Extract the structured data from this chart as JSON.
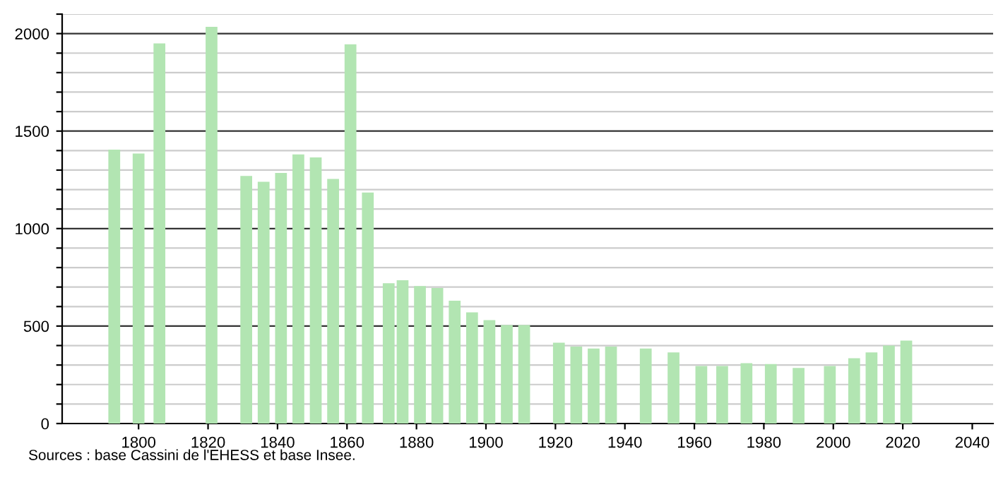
{
  "chart_data": {
    "type": "bar",
    "x": [
      1793,
      1800,
      1806,
      1821,
      1831,
      1836,
      1841,
      1846,
      1851,
      1856,
      1861,
      1866,
      1872,
      1876,
      1881,
      1886,
      1891,
      1896,
      1901,
      1906,
      1911,
      1921,
      1926,
      1931,
      1936,
      1946,
      1954,
      1962,
      1968,
      1975,
      1982,
      1990,
      1999,
      2006,
      2011,
      2016,
      2021
    ],
    "values": [
      1405,
      1385,
      1950,
      2035,
      1270,
      1240,
      1285,
      1380,
      1365,
      1255,
      1945,
      1185,
      720,
      735,
      705,
      695,
      630,
      570,
      530,
      505,
      505,
      415,
      395,
      385,
      395,
      385,
      365,
      295,
      295,
      310,
      305,
      285,
      295,
      335,
      365,
      400,
      425
    ],
    "color": "#b2e5b2",
    "xlim": [
      1778,
      2046
    ],
    "xticks": [
      1800,
      1820,
      1840,
      1860,
      1880,
      1900,
      1920,
      1940,
      1960,
      1980,
      2000,
      2020,
      2040
    ],
    "ylim": [
      0,
      2100
    ],
    "yticks": [
      0,
      {
        "value": 100,
        "label": null
      },
      {
        "value": 200,
        "label": null
      },
      {
        "value": 300,
        "label": null
      },
      {
        "value": 400,
        "label": null
      },
      500,
      {
        "value": 600,
        "label": null
      },
      {
        "value": 700,
        "label": null
      },
      {
        "value": 800,
        "label": null
      },
      {
        "value": 900,
        "label": null
      },
      1000,
      {
        "value": 1100,
        "label": null
      },
      {
        "value": 1200,
        "label": null
      },
      {
        "value": 1300,
        "label": null
      },
      {
        "value": 1400,
        "label": null
      },
      1500,
      {
        "value": 1600,
        "label": null
      },
      {
        "value": 1700,
        "label": null
      },
      {
        "value": 1800,
        "label": null
      },
      {
        "value": 1900,
        "label": null
      },
      2000,
      {
        "value": 2100,
        "label": null
      }
    ],
    "grid": "y",
    "annotations": [
      "Sources : base Cassini de l'EHESS et base Insee."
    ]
  }
}
